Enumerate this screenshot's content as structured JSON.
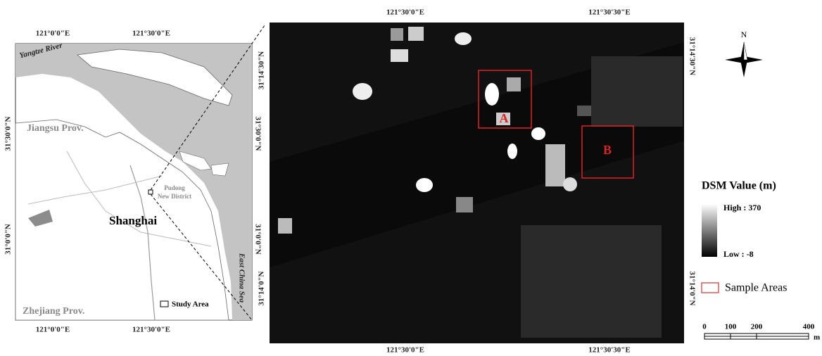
{
  "overview_map": {
    "top_ticks": [
      "121°0'0\"E",
      "121°30'0\"E"
    ],
    "bottom_ticks": [
      "121°0'0\"E",
      "121°30'0\"E"
    ],
    "left_ticks": [
      "31°30'0\"N",
      "31°0'0\"N"
    ],
    "right_ticks": [
      "31°30'0\"N",
      "31°0'0\"N"
    ],
    "labels": {
      "river": "Yangtze River",
      "jiangsu": "Jiangsu Prov.",
      "shanghai": "Shanghai",
      "pudong": [
        "Pudong",
        "New District"
      ],
      "zhejiang": "Zhejiang Prov.",
      "sea": "East China Sea"
    },
    "legend": "Study Area"
  },
  "dsm_image": {
    "top_ticks": [
      "121°30'0\"E",
      "121°30'30\"E"
    ],
    "bottom_ticks": [
      "121°30'0\"E",
      "121°30'30\"E"
    ],
    "left_ticks": [
      "31°14'30\"N",
      "31°14'0\"N"
    ],
    "right_ticks": [
      "31°14'30\"N",
      "31°14'0\"N"
    ],
    "areas": [
      "A",
      "B"
    ]
  },
  "legend": {
    "north": "N",
    "title": "DSM Value (m)",
    "high": "High : 370",
    "low": "Low : -8",
    "sample": "Sample Areas",
    "scale": [
      "0",
      "100",
      "200",
      "400"
    ],
    "scale_unit": "m"
  }
}
